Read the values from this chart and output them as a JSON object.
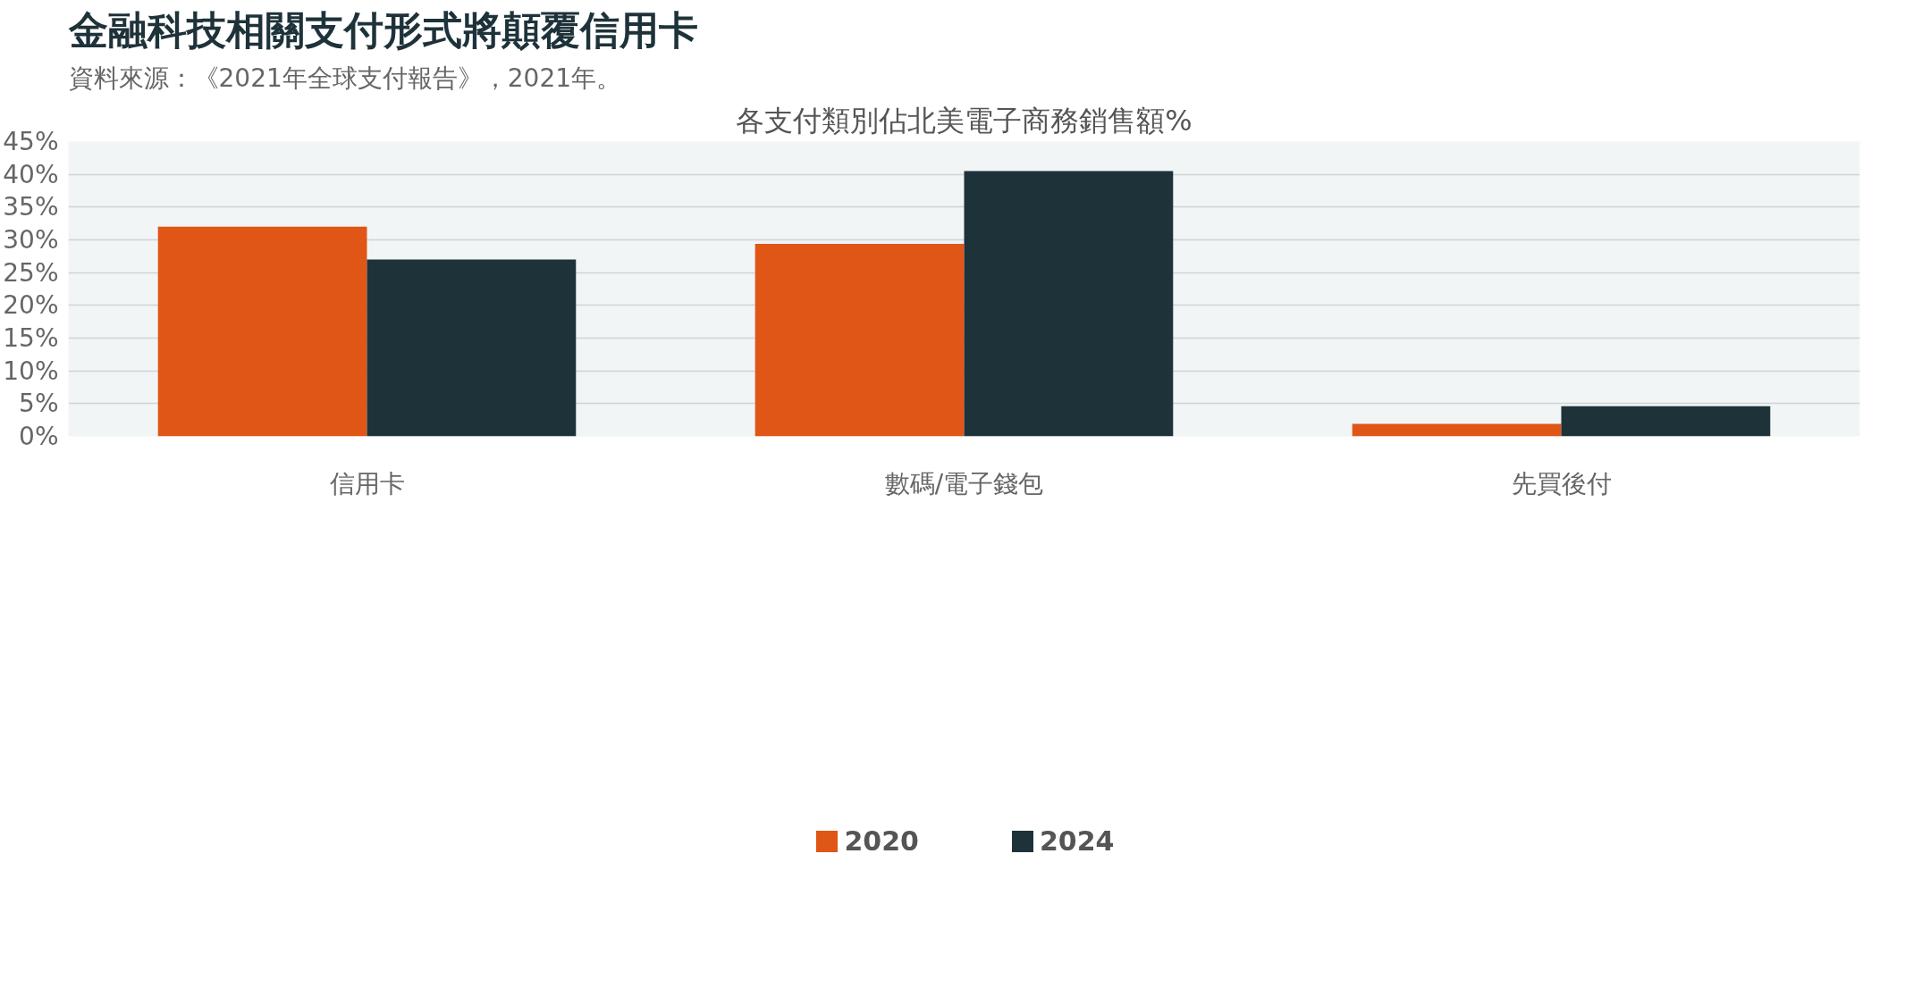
{
  "chart_data": {
    "type": "bar",
    "title": "金融科技相關支付形式將顛覆信用卡",
    "subtitle": "資料來源：《2021年全球支付報告》，2021年。",
    "annotations": [
      "各支付類別佔北美電子商務銷售額%"
    ],
    "categories": [
      "信用卡",
      "數碼/電子錢包",
      "先買後付"
    ],
    "series": [
      {
        "name": "2020",
        "color": "#e05616",
        "values": [
          32,
          29.4,
          1.9
        ]
      },
      {
        "name": "2024",
        "color": "#1e323a",
        "values": [
          27,
          40.5,
          4.6
        ]
      }
    ],
    "ylim": [
      0,
      45
    ],
    "yticks": [
      {
        "value": 0,
        "label": "0%"
      },
      {
        "value": 5,
        "label": "5%"
      },
      {
        "value": 10,
        "label": "10%"
      },
      {
        "value": 15,
        "label": "15%"
      },
      {
        "value": 20,
        "label": "20%"
      },
      {
        "value": 25,
        "label": "25%"
      },
      {
        "value": 30,
        "label": "30%"
      },
      {
        "value": 35,
        "label": "35%"
      },
      {
        "value": 40,
        "label": "40%"
      },
      {
        "value": 45,
        "label": "45%"
      }
    ],
    "grid": "y",
    "legend": "bottom"
  }
}
